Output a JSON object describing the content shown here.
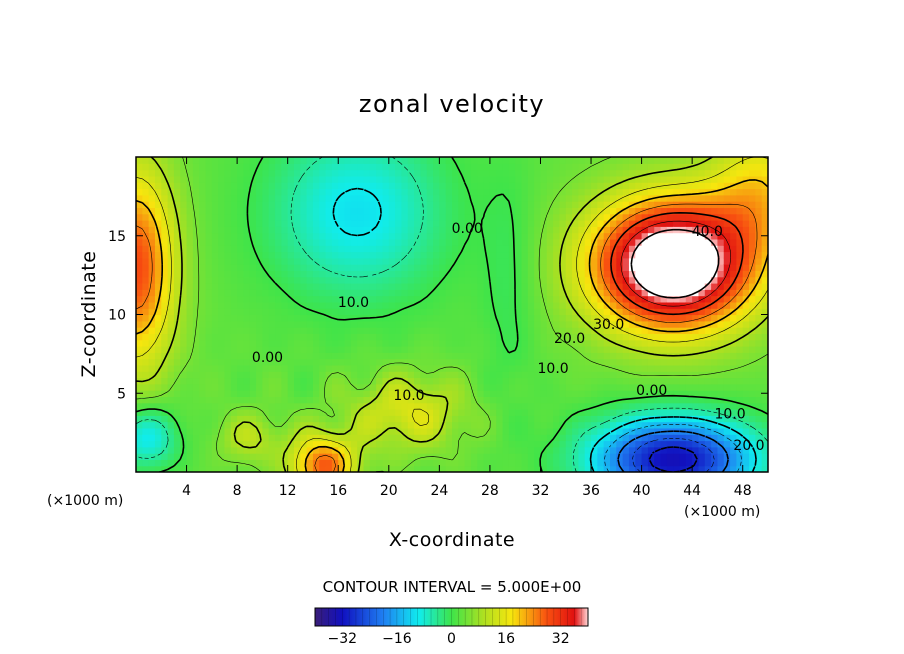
{
  "chart_data": {
    "type": "heatmap",
    "title": "zonal velocity",
    "xlabel": "X-coordinate",
    "ylabel": "Z-coordinate",
    "x_unit": "(×1000 m)",
    "y_unit": "(×1000 m)",
    "xlim": [
      0,
      50
    ],
    "ylim": [
      0,
      20
    ],
    "x_ticks": [
      "4",
      "8",
      "12",
      "16",
      "20",
      "24",
      "28",
      "32",
      "36",
      "40",
      "44",
      "48"
    ],
    "y_ticks": [
      "5",
      "10",
      "15"
    ],
    "contour_interval_label": "CONTOUR INTERVAL = 5.000E+00",
    "contour_labels": [
      {
        "text": "40.0",
        "x": 45.2,
        "z": 15.3
      },
      {
        "text": "30.0",
        "x": 37.4,
        "z": 9.4
      },
      {
        "text": "20.0",
        "x": 34.3,
        "z": 8.5
      },
      {
        "text": "10.0",
        "x": 33.0,
        "z": 6.6
      },
      {
        "text": "0.00",
        "x": 40.8,
        "z": 5.2
      },
      {
        "text": "10.0",
        "x": 47.0,
        "z": 3.7
      },
      {
        "text": "20.0",
        "x": 48.5,
        "z": 1.7
      },
      {
        "text": "0.00",
        "x": 26.2,
        "z": 15.5
      },
      {
        "text": "10.0",
        "x": 17.2,
        "z": 10.8
      },
      {
        "text": "0.00",
        "x": 10.4,
        "z": 7.3
      },
      {
        "text": "10.0",
        "x": 21.6,
        "z": 4.9
      }
    ],
    "colorbar": {
      "range": [
        -40,
        40
      ],
      "ticks": [
        "−32",
        "−16",
        "0",
        "16",
        "32"
      ],
      "tick_values": [
        -32,
        -16,
        0,
        16,
        32
      ]
    },
    "features": [
      {
        "kind": "max",
        "x": 42.5,
        "z": 13.0,
        "value": 45,
        "note": "white region exceeds 40"
      },
      {
        "kind": "min",
        "x": 42.0,
        "z": 1.0,
        "value": -30
      },
      {
        "kind": "min",
        "x": 17.0,
        "z": 16.0,
        "value": -14
      },
      {
        "kind": "max",
        "x": 0.5,
        "z": 13.0,
        "value": 28
      },
      {
        "kind": "max",
        "x": 14.8,
        "z": 0.5,
        "value": 25
      }
    ],
    "grid": false
  }
}
